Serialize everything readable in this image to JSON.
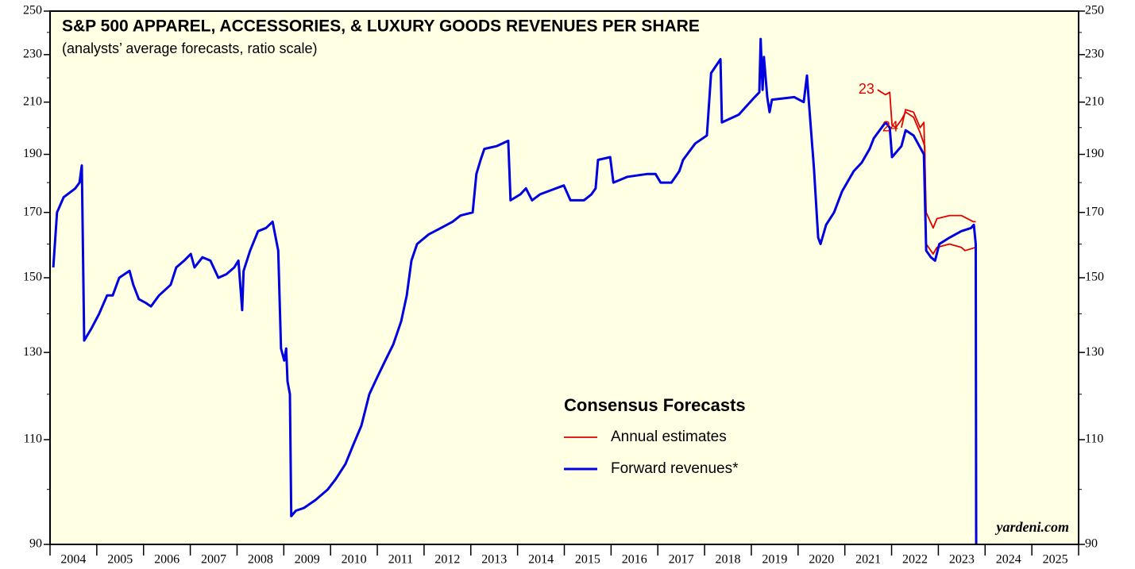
{
  "chart_data": {
    "type": "line",
    "title": "S&P 500 APPAREL, ACCESSORIES, & LUXURY GOODS REVENUES PER SHARE",
    "subtitle": "(analysts’ average forecasts, ratio scale)",
    "source": "yardeni.com",
    "log_scale": true,
    "ylim": [
      90,
      250
    ],
    "yticks": [
      90,
      110,
      130,
      150,
      170,
      190,
      210,
      230,
      250
    ],
    "yticks_minor": [
      100,
      120,
      140,
      160,
      180,
      200,
      220,
      240
    ],
    "xlim": [
      2004,
      2026
    ],
    "xticks": [
      2004,
      2005,
      2006,
      2007,
      2008,
      2009,
      2010,
      2011,
      2012,
      2013,
      2014,
      2015,
      2016,
      2017,
      2018,
      2019,
      2020,
      2021,
      2022,
      2023,
      2024,
      2025,
      2026
    ],
    "xtick_labels": [
      2004,
      2005,
      2006,
      2007,
      2008,
      2009,
      2010,
      2011,
      2012,
      2013,
      2014,
      2015,
      2016,
      2017,
      2018,
      2019,
      2020,
      2021,
      2022,
      2023,
      2024,
      2025
    ],
    "legend": {
      "title": "Consensus Forecasts",
      "entries": [
        {
          "label": "Annual estimates",
          "color": "#e00000"
        },
        {
          "label": "Forward revenues*",
          "color": "#0000e0"
        }
      ]
    },
    "series": [
      {
        "name": "23",
        "color": "#e00000",
        "x": [
          2021.7,
          2021.87,
          2021.96,
          2022.01,
          2022.09,
          2022.21,
          2022.3,
          2022.47,
          2022.61,
          2022.71,
          2022.74,
          2022.89,
          2022.97,
          2023.24,
          2023.49,
          2023.57,
          2023.8
        ],
        "values": [
          215,
          213,
          214,
          201,
          200,
          203,
          206,
          204,
          198,
          193,
          160,
          157,
          159,
          160,
          159,
          158,
          159
        ]
      },
      {
        "name": "24",
        "color": "#e00000",
        "x": [
          2022.21,
          2022.3,
          2022.47,
          2022.61,
          2022.69,
          2022.74,
          2022.89,
          2022.97,
          2023.24,
          2023.49,
          2023.75,
          2023.8
        ],
        "values": [
          200,
          207,
          206,
          200,
          202,
          170,
          165,
          168,
          169,
          169,
          167,
          167
        ]
      },
      {
        "color": "#0000e0",
        "x": [
          2004.07,
          2004.15,
          2004.29,
          2004.54,
          2004.63,
          2004.68,
          2004.73,
          2004.88,
          2005.05,
          2005.22,
          2005.34,
          2005.48,
          2005.7,
          2005.78,
          2005.9,
          2006.04,
          2006.16,
          2006.33,
          2006.58,
          2006.7,
          2006.87,
          2007.01,
          2007.09,
          2007.26,
          2007.43,
          2007.6,
          2007.77,
          2007.94,
          2008.03,
          2008.11,
          2008.14,
          2008.28,
          2008.45,
          2008.62,
          2008.76,
          2008.88,
          2008.94,
          2009.01,
          2009.05,
          2009.08,
          2009.13,
          2009.16,
          2009.26,
          2009.43,
          2009.68,
          2009.94,
          2010.11,
          2010.32,
          2010.49,
          2010.66,
          2010.83,
          2011.0,
          2011.17,
          2011.34,
          2011.51,
          2011.63,
          2011.73,
          2011.85,
          2012.1,
          2012.36,
          2012.61,
          2012.78,
          2013.04,
          2013.12,
          2013.21,
          2013.29,
          2013.55,
          2013.8,
          2013.85,
          2014.06,
          2014.18,
          2014.31,
          2014.48,
          2014.65,
          2014.99,
          2015.13,
          2015.42,
          2015.58,
          2015.67,
          2015.72,
          2015.98,
          2016.05,
          2016.35,
          2016.78,
          2016.95,
          2017.06,
          2017.29,
          2017.46,
          2017.54,
          2017.8,
          2018.05,
          2018.14,
          2018.34,
          2018.37,
          2018.73,
          2019.07,
          2019.17,
          2019.2,
          2019.24,
          2019.27,
          2019.34,
          2019.39,
          2019.44,
          2019.92,
          2020.12,
          2020.19,
          2020.23,
          2020.34,
          2020.43,
          2020.48,
          2020.6,
          2020.77,
          2020.94,
          2021.19,
          2021.36,
          2021.53,
          2021.62,
          2021.87,
          2021.96,
          2022.01,
          2022.21,
          2022.3,
          2022.47,
          2022.69,
          2022.74,
          2022.84,
          2022.93,
          2023.02,
          2023.24,
          2023.49,
          2023.7,
          2023.76,
          2023.8,
          2023.81
        ],
        "values": [
          153,
          170,
          175,
          178,
          180,
          186,
          133,
          136,
          140,
          145,
          145,
          150,
          152,
          148,
          144,
          143,
          142,
          145,
          148,
          153,
          155,
          157,
          153,
          156,
          155,
          150,
          151,
          153,
          155,
          141,
          152,
          158,
          164,
          165,
          167,
          158,
          131,
          128,
          131,
          123,
          120,
          95,
          96,
          96.5,
          98,
          100,
          102,
          105,
          109,
          113,
          120,
          124,
          128,
          132,
          138,
          145,
          155,
          160,
          163,
          165,
          167,
          169,
          170,
          183,
          188,
          192,
          193,
          195,
          174,
          176,
          178,
          174,
          176,
          177,
          179,
          174,
          174,
          176,
          178,
          188,
          189,
          180,
          182,
          183,
          183,
          180,
          180,
          184,
          188,
          194,
          197,
          222,
          228,
          202,
          205,
          212,
          214,
          237,
          215,
          229,
          212,
          206,
          211,
          212,
          210,
          221,
          210,
          185,
          162,
          160,
          166,
          170,
          177,
          184,
          187,
          192,
          196,
          202,
          200,
          189,
          193,
          199,
          197,
          190,
          158,
          156,
          155,
          160,
          162,
          164,
          165,
          166,
          160,
          85
        ]
      }
    ]
  }
}
